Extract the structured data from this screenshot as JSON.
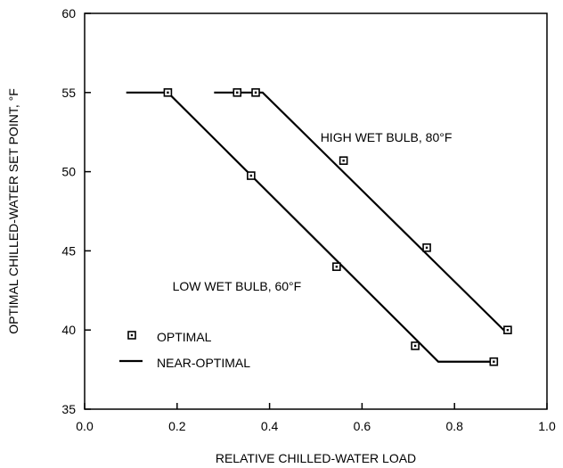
{
  "chart_data": {
    "type": "scatter",
    "xlabel": "RELATIVE CHILLED-WATER LOAD",
    "ylabel": "OPTIMAL CHILLED-WATER SET POINT, °F",
    "xlim": [
      0.0,
      1.0
    ],
    "ylim": [
      35,
      60
    ],
    "xticks": [
      0.0,
      0.2,
      0.4,
      0.6,
      0.8,
      1.0
    ],
    "xtick_labels": [
      "0.0",
      "0.2",
      "0.4",
      "0.6",
      "0.8",
      "1.0"
    ],
    "yticks": [
      35,
      40,
      45,
      50,
      55,
      60
    ],
    "ytick_labels": [
      "35",
      "40",
      "45",
      "50",
      "55",
      "60"
    ],
    "grid": false,
    "legend_placement": "bottom-left",
    "legend": [
      {
        "label": "OPTIMAL",
        "marker": "square-dot"
      },
      {
        "label": "NEAR-OPTIMAL",
        "marker": "line"
      }
    ],
    "annotations": [
      {
        "text": "HIGH WET BULB, 80°F",
        "x": 0.51,
        "y": 51.9
      },
      {
        "text": "LOW WET BULB, 60°F",
        "x": 0.19,
        "y": 42.5
      }
    ],
    "series": [
      {
        "kind": "near-optimal",
        "line": [
          [
            0.09,
            55.0
          ],
          [
            0.18,
            55.0
          ],
          [
            0.765,
            38.0
          ],
          [
            0.89,
            38.0
          ]
        ],
        "points": [
          [
            0.18,
            55.0
          ],
          [
            0.36,
            49.75
          ],
          [
            0.545,
            44.0
          ],
          [
            0.715,
            39.0
          ],
          [
            0.885,
            38.0
          ]
        ]
      },
      {
        "kind": "near-optimal",
        "line": [
          [
            0.28,
            55.0
          ],
          [
            0.385,
            55.0
          ],
          [
            0.91,
            39.9
          ]
        ],
        "points": [
          [
            0.33,
            55.0
          ],
          [
            0.37,
            55.0
          ],
          [
            0.56,
            50.7
          ],
          [
            0.74,
            45.2
          ],
          [
            0.915,
            40.0
          ]
        ]
      }
    ]
  }
}
